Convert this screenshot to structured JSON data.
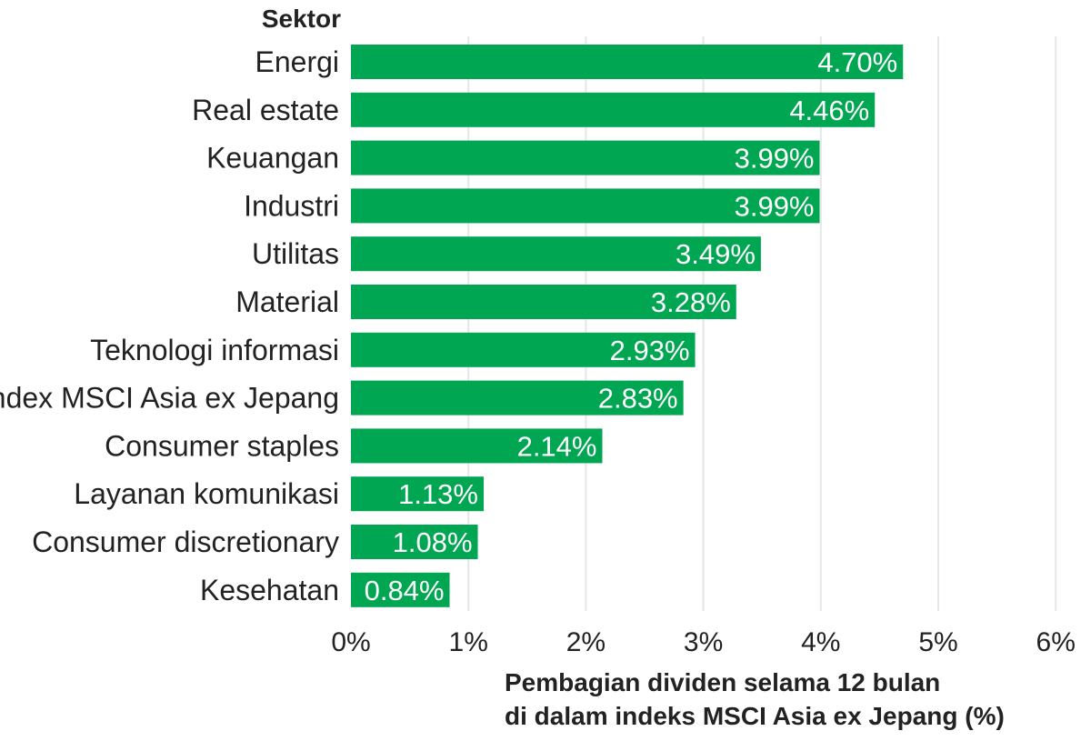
{
  "chart_data": {
    "type": "bar",
    "orientation": "horizontal",
    "y_title": "Sektor",
    "x_title_lines": [
      "Pembagian dividen selama 12 bulan",
      "di dalam indeks MSCI Asia ex Jepang (%)"
    ],
    "categories": [
      "Energi",
      "Real estate",
      "Keuangan",
      "Industri",
      "Utilitas",
      "Material",
      "Teknologi informasi",
      "Index MSCI Asia ex Jepang",
      "Consumer staples",
      "Layanan komunikasi",
      "Consumer discretionary",
      "Kesehatan"
    ],
    "values": [
      4.7,
      4.46,
      3.99,
      3.99,
      3.49,
      3.28,
      2.93,
      2.83,
      2.14,
      1.13,
      1.08,
      0.84
    ],
    "value_labels": [
      "4.70%",
      "4.46%",
      "3.99%",
      "3.99%",
      "3.49%",
      "3.28%",
      "2.93%",
      "2.83%",
      "2.14%",
      "1.13%",
      "1.08%",
      "0.84%"
    ],
    "xlim": [
      0,
      6
    ],
    "x_ticks": [
      0,
      1,
      2,
      3,
      4,
      5,
      6
    ],
    "x_tick_labels": [
      "0%",
      "1%",
      "2%",
      "3%",
      "4%",
      "5%",
      "6%"
    ],
    "grid": true,
    "bar_color": "#00a651"
  }
}
